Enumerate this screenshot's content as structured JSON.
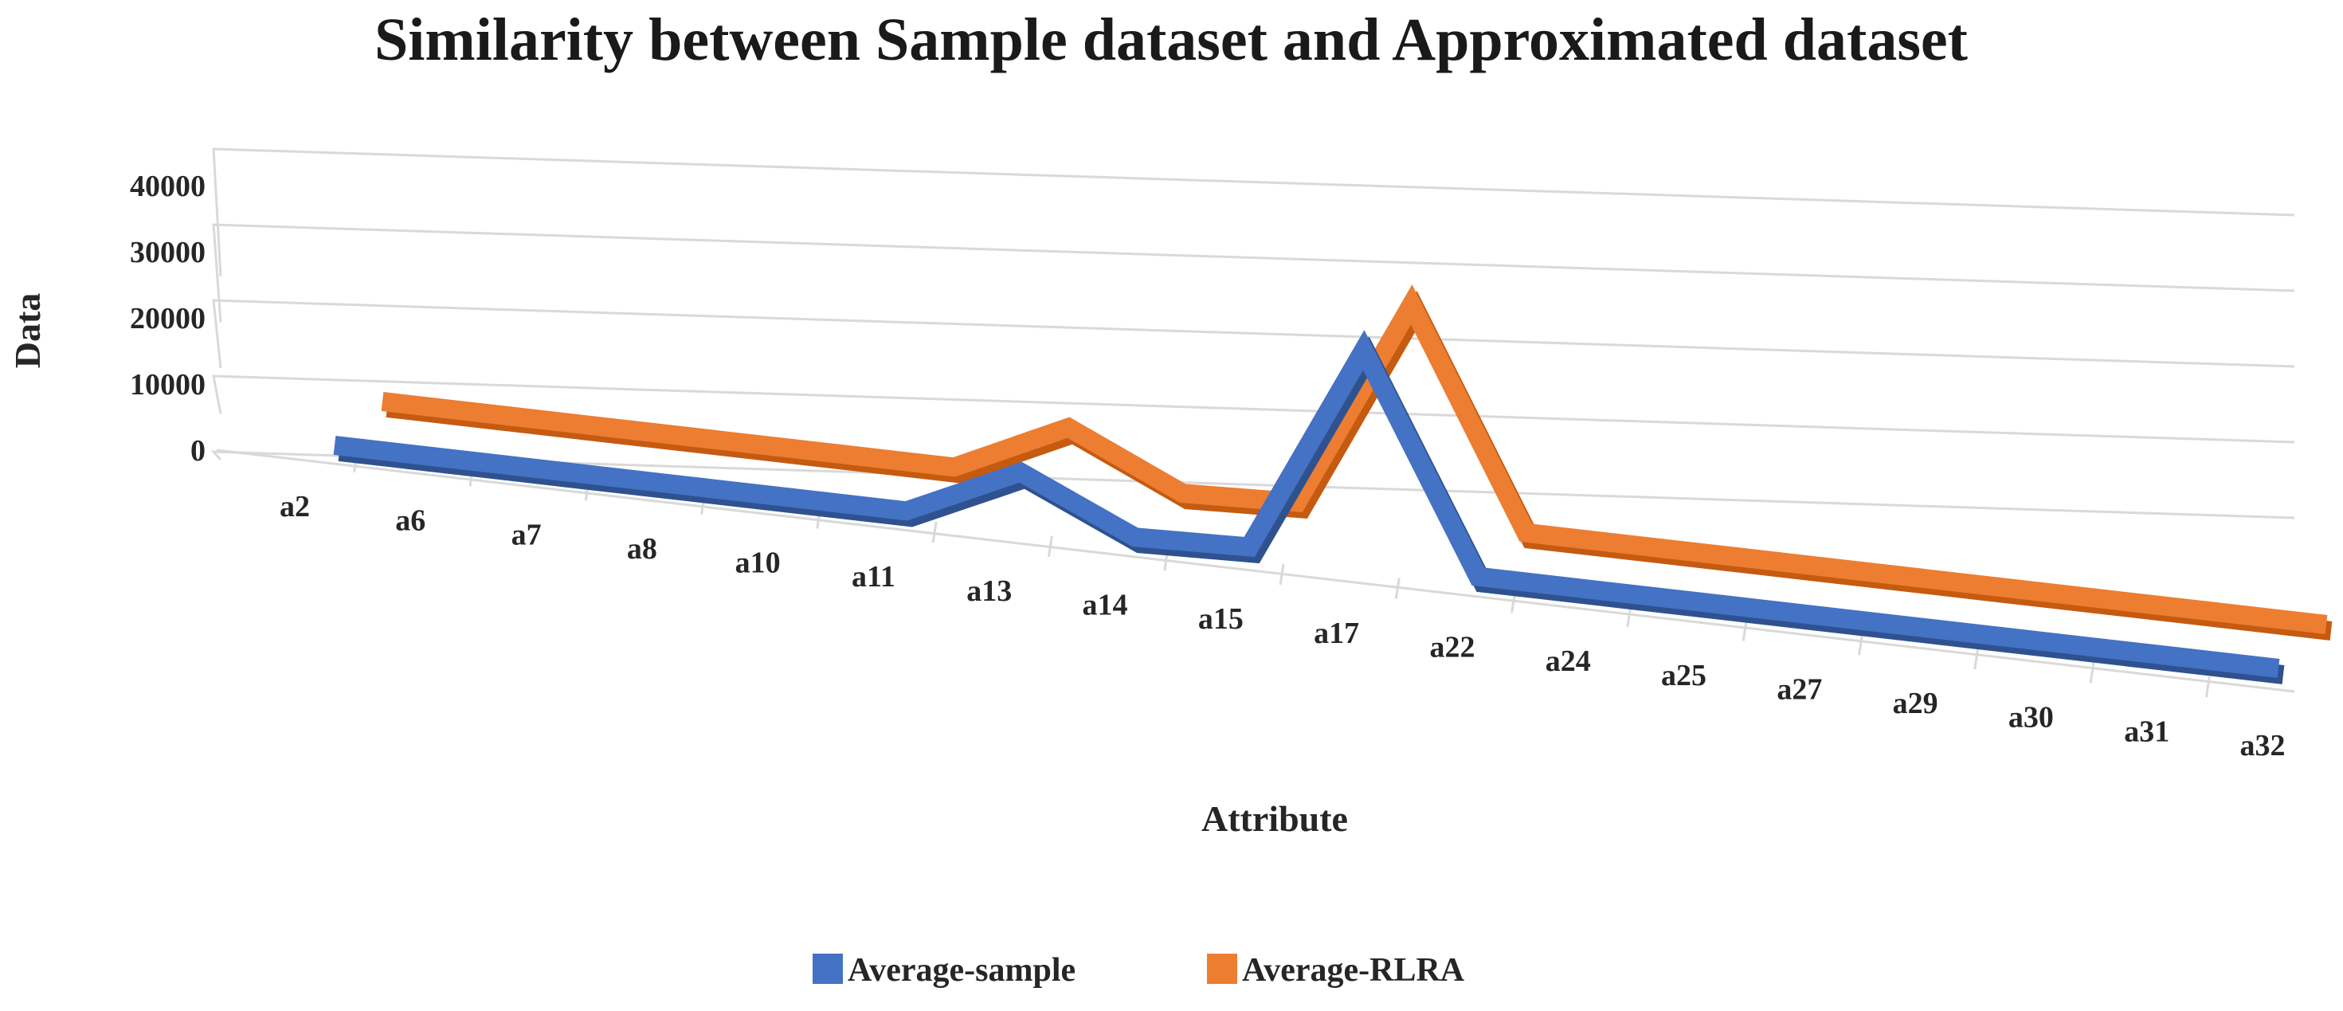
{
  "chart_data": {
    "type": "line",
    "subtype": "3d-line",
    "title": "Similarity between Sample dataset and Approximated dataset",
    "xlabel": "Attribute",
    "ylabel": "Data",
    "ylim": [
      0,
      40000
    ],
    "yticks": [
      "0",
      "10000",
      "20000",
      "30000",
      "40000"
    ],
    "grid": true,
    "legend_position": "bottom",
    "categories": [
      "a2",
      "a6",
      "a7",
      "a8",
      "a10",
      "a11",
      "a13",
      "a14",
      "a15",
      "a17",
      "a22",
      "a24",
      "a25",
      "a27",
      "a29",
      "a30",
      "a31",
      "a32"
    ],
    "series": [
      {
        "name": "Average-sample",
        "color": "#4472C4",
        "values": [
          100,
          100,
          100,
          100,
          100,
          100,
          6300,
          100,
          500,
          25600,
          100,
          100,
          100,
          100,
          100,
          100,
          100,
          100
        ]
      },
      {
        "name": "Average-RLRA",
        "color": "#ED7D31",
        "values": [
          100,
          100,
          100,
          100,
          100,
          100,
          6400,
          100,
          600,
          25800,
          100,
          100,
          100,
          100,
          100,
          100,
          100,
          100
        ]
      }
    ]
  }
}
